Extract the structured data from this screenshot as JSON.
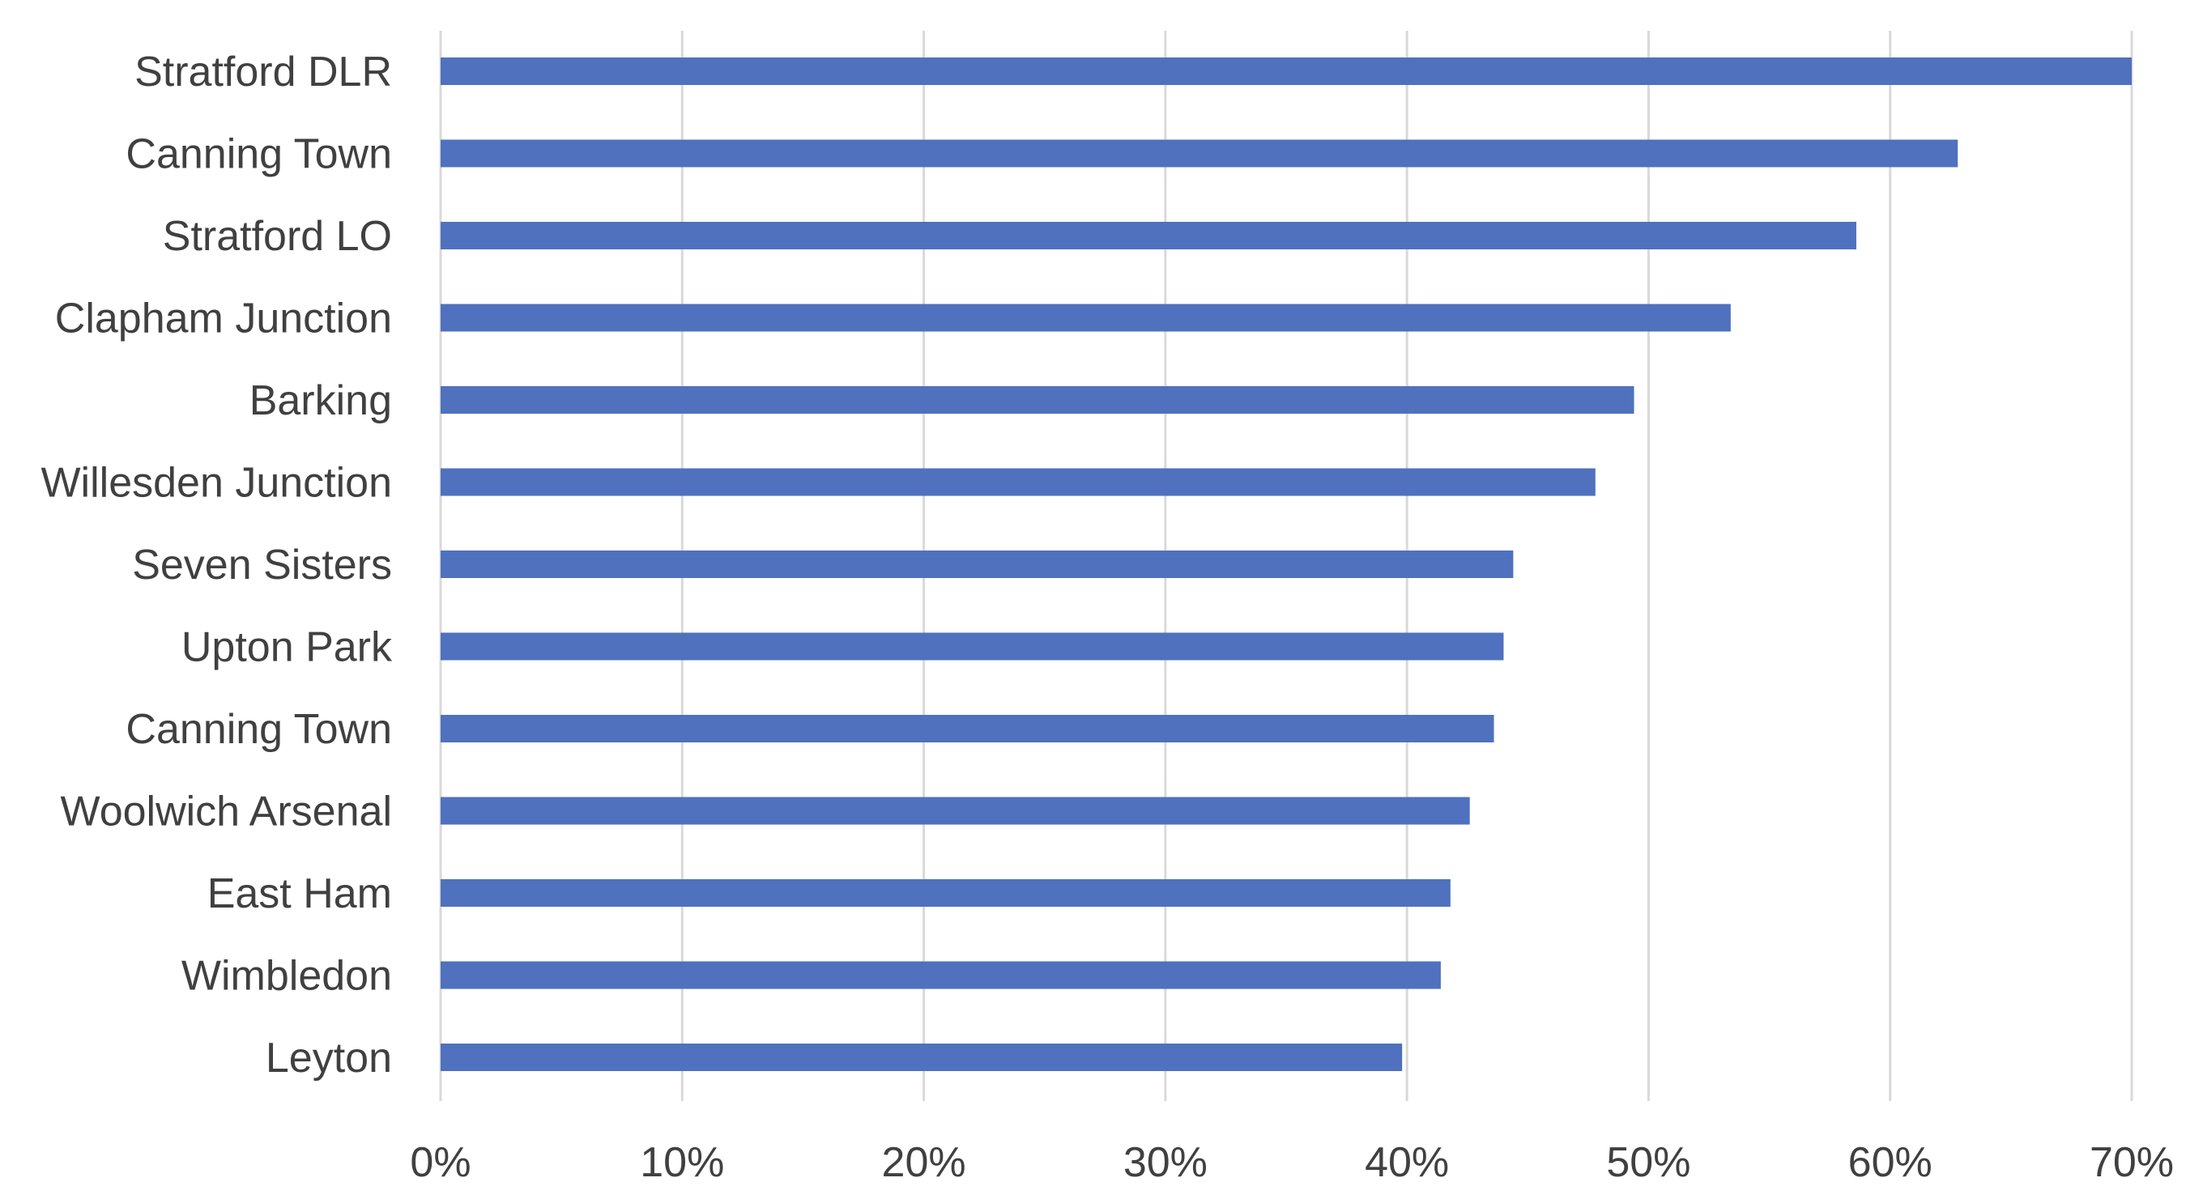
{
  "chart_data": {
    "type": "bar",
    "orientation": "horizontal",
    "categories": [
      "Stratford DLR",
      "Canning Town",
      "Stratford LO",
      "Clapham Junction",
      "Barking",
      "Willesden Junction",
      "Seven Sisters",
      "Upton Park",
      "Canning Town",
      "Woolwich Arsenal",
      "East Ham",
      "Wimbledon",
      "Leyton"
    ],
    "values": [
      70.0,
      62.8,
      58.6,
      53.4,
      49.4,
      47.8,
      44.4,
      44.0,
      43.6,
      42.6,
      41.8,
      41.4,
      39.8
    ],
    "value_unit": "%",
    "xlim": [
      0,
      70
    ],
    "xticks": [
      "0%",
      "10%",
      "20%",
      "30%",
      "40%",
      "50%",
      "60%",
      "70%"
    ],
    "xtick_values": [
      0,
      10,
      20,
      30,
      40,
      50,
      60,
      70
    ],
    "grid": "vertical",
    "legend": "none",
    "bar_color": "#4f71be",
    "grid_color": "#d9d9d9",
    "text_color": "#404040"
  }
}
